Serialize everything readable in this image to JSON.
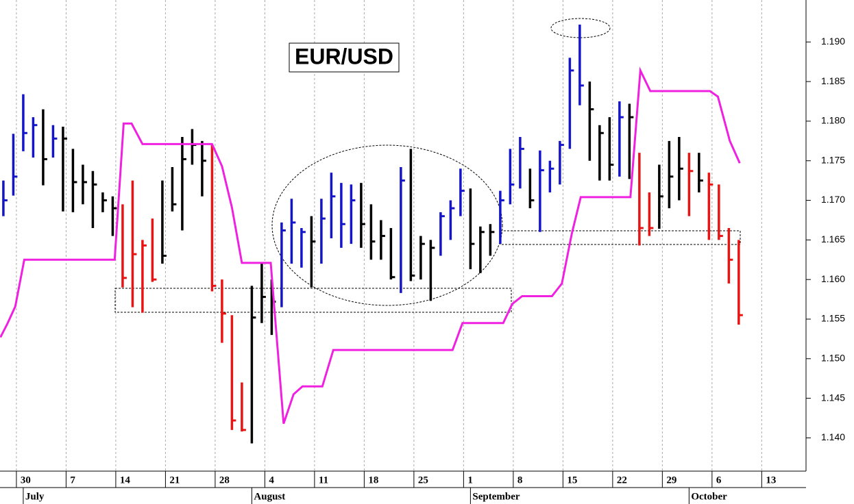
{
  "chart_data": {
    "type": "hlc",
    "title": "EUR/USD",
    "x": [
      -2,
      -1,
      0,
      1,
      2,
      3,
      4,
      5,
      6,
      7,
      8,
      9,
      10,
      11,
      12,
      13,
      14,
      15,
      16,
      17,
      18,
      19,
      20,
      21,
      22,
      23,
      24,
      25,
      26,
      27,
      28,
      29,
      30,
      31,
      32,
      33,
      34,
      35,
      36,
      37,
      38,
      39,
      40,
      41,
      42,
      43,
      44,
      45,
      46,
      47,
      48,
      49,
      50,
      51,
      52,
      53,
      54,
      55,
      56,
      57,
      58,
      59,
      60,
      61,
      62,
      63,
      64,
      65,
      66,
      67,
      68,
      69,
      70,
      71,
      72
    ],
    "high": [
      1.1725,
      1.1784,
      1.1834,
      1.1805,
      1.1815,
      1.1795,
      1.1793,
      1.1765,
      1.1745,
      1.1737,
      1.171,
      1.1705,
      1.1695,
      1.1725,
      1.165,
      1.1677,
      1.1725,
      1.1742,
      1.178,
      1.179,
      1.1775,
      1.177,
      1.16,
      1.1555,
      1.147,
      1.1592,
      1.162,
      1.16,
      1.1672,
      1.1702,
      1.1665,
      1.168,
      1.1702,
      1.1735,
      1.1722,
      1.172,
      1.1722,
      1.1695,
      1.1675,
      1.1665,
      1.1742,
      1.1765,
      1.1655,
      1.165,
      1.1685,
      1.17,
      1.174,
      1.1715,
      1.1667,
      1.167,
      1.1712,
      1.1765,
      1.178,
      1.174,
      1.1763,
      1.175,
      1.1775,
      1.188,
      1.1922,
      1.185,
      1.1795,
      1.1805,
      1.1825,
      1.1822,
      1.176,
      1.171,
      1.1745,
      1.1775,
      1.178,
      1.176,
      1.176,
      1.1735,
      1.172,
      1.1665,
      1.165
    ],
    "low": [
      1.168,
      1.1706,
      1.1762,
      1.1754,
      1.1719,
      1.1754,
      1.1686,
      1.1685,
      1.1695,
      1.1665,
      1.1685,
      1.1655,
      1.159,
      1.1565,
      1.1558,
      1.1597,
      1.162,
      1.1686,
      1.1662,
      1.1745,
      1.1705,
      1.1585,
      1.152,
      1.141,
      1.1408,
      1.1393,
      1.1545,
      1.153,
      1.1565,
      1.162,
      1.1615,
      1.159,
      1.162,
      1.1652,
      1.164,
      1.1645,
      1.164,
      1.1625,
      1.1625,
      1.16,
      1.1583,
      1.1598,
      1.16,
      1.1573,
      1.163,
      1.165,
      1.168,
      1.1613,
      1.1608,
      1.163,
      1.1645,
      1.1695,
      1.1715,
      1.169,
      1.166,
      1.171,
      1.172,
      1.1765,
      1.182,
      1.175,
      1.1725,
      1.1725,
      1.173,
      1.1727,
      1.1643,
      1.1655,
      1.1664,
      1.169,
      1.17,
      1.168,
      1.171,
      1.165,
      1.165,
      1.1595,
      1.1543
    ],
    "close": [
      1.17,
      1.173,
      1.1785,
      1.1795,
      1.1752,
      1.1778,
      1.1778,
      1.1723,
      1.1723,
      1.172,
      1.17,
      1.169,
      1.1602,
      1.1632,
      1.1643,
      1.16,
      1.163,
      1.1695,
      1.1752,
      1.177,
      1.175,
      1.1592,
      1.1557,
      1.1422,
      1.141,
      1.1552,
      1.1578,
      1.1572,
      1.1662,
      1.1672,
      1.166,
      1.1648,
      1.1677,
      1.1705,
      1.167,
      1.17,
      1.167,
      1.1648,
      1.1655,
      1.1603,
      1.1725,
      1.1605,
      1.1645,
      1.164,
      1.168,
      1.169,
      1.1712,
      1.1645,
      1.166,
      1.166,
      1.17,
      1.172,
      1.1765,
      1.17,
      1.1738,
      1.174,
      1.177,
      1.1864,
      1.1845,
      1.1815,
      1.1785,
      1.1745,
      1.1805,
      1.1805,
      1.1665,
      1.1665,
      1.1705,
      1.173,
      1.174,
      1.1737,
      1.1725,
      1.172,
      1.1655,
      1.1625,
      1.1555
    ],
    "bar_colors": [
      "#1414c8",
      "#1414c8",
      "#1414c8",
      "#1414c8",
      "#000000",
      "#1414c8",
      "#000000",
      "#000000",
      "#000000",
      "#000000",
      "#000000",
      "#000000",
      "#e81414",
      "#e81414",
      "#e81414",
      "#e81414",
      "#000000",
      "#000000",
      "#000000",
      "#000000",
      "#000000",
      "#e81414",
      "#e81414",
      "#e81414",
      "#e81414",
      "#000000",
      "#000000",
      "#000000",
      "#1414c8",
      "#1414c8",
      "#1414c8",
      "#000000",
      "#1414c8",
      "#1414c8",
      "#1414c8",
      "#1414c8",
      "#000000",
      "#000000",
      "#000000",
      "#000000",
      "#1414c8",
      "#000000",
      "#000000",
      "#000000",
      "#1414c8",
      "#1414c8",
      "#1414c8",
      "#000000",
      "#000000",
      "#000000",
      "#1414c8",
      "#1414c8",
      "#1414c8",
      "#000000",
      "#1414c8",
      "#1414c8",
      "#1414c8",
      "#1414c8",
      "#1414c8",
      "#000000",
      "#000000",
      "#000000",
      "#1414c8",
      "#000000",
      "#e81414",
      "#e81414",
      "#000000",
      "#000000",
      "#000000",
      "#e81414",
      "#000000",
      "#e81414",
      "#e81414",
      "#e81414",
      "#e81414"
    ],
    "line": {
      "color": "#f020e0",
      "x": [
        -2.3,
        -1.6,
        -0.8,
        0.1,
        9.2,
        10.1,
        10.9,
        12,
        19,
        20,
        21,
        22,
        24.9,
        26.2,
        27.2,
        28.1,
        30.1,
        31.2,
        43.2,
        44.2,
        48.3,
        49.2,
        50.2,
        53.2,
        54.2,
        55.2,
        56.1,
        61.1,
        62.1,
        63.1,
        69.1,
        69.9,
        71.1,
        72.1
      ],
      "values": [
        1.1527,
        1.1544,
        1.1566,
        1.1625,
        1.1625,
        1.1797,
        1.1797,
        1.1771,
        1.1771,
        1.1743,
        1.1691,
        1.1621,
        1.1621,
        1.1418,
        1.1455,
        1.1465,
        1.1465,
        1.1511,
        1.1511,
        1.1545,
        1.1545,
        1.1569,
        1.1579,
        1.1579,
        1.1595,
        1.1658,
        1.1704,
        1.1704,
        1.1864,
        1.1838,
        1.1838,
        1.1831,
        1.1775,
        1.1747
      ]
    },
    "xlim": [
      -2.34,
      78.7
    ],
    "ylim": [
      1.1358,
      1.1953
    ],
    "yticks": [
      {
        "value": 1.14,
        "label": "1.140"
      },
      {
        "value": 1.145,
        "label": "1.145"
      },
      {
        "value": 1.15,
        "label": "1.150"
      },
      {
        "value": 1.155,
        "label": "1.155"
      },
      {
        "value": 1.16,
        "label": "1.160"
      },
      {
        "value": 1.165,
        "label": "1.165"
      },
      {
        "value": 1.17,
        "label": "1.170"
      },
      {
        "value": 1.175,
        "label": "1.175"
      },
      {
        "value": 1.18,
        "label": "1.180"
      },
      {
        "value": 1.185,
        "label": "1.185"
      },
      {
        "value": 1.19,
        "label": "1.190"
      }
    ],
    "xticks": [
      {
        "value": 0,
        "label": "30"
      },
      {
        "value": 5,
        "label": "7"
      },
      {
        "value": 10,
        "label": "14"
      },
      {
        "value": 15,
        "label": "21"
      },
      {
        "value": 20,
        "label": "28"
      },
      {
        "value": 25,
        "label": "4"
      },
      {
        "value": 30,
        "label": "11"
      },
      {
        "value": 35,
        "label": "18"
      },
      {
        "value": 40,
        "label": "25"
      },
      {
        "value": 45,
        "label": "1"
      },
      {
        "value": 50,
        "label": "8"
      },
      {
        "value": 55,
        "label": "15"
      },
      {
        "value": 60,
        "label": "22"
      },
      {
        "value": 65,
        "label": "29"
      },
      {
        "value": 70,
        "label": "6"
      },
      {
        "value": 75,
        "label": "13"
      }
    ],
    "month_ticks": [
      {
        "value": 0,
        "label": "July"
      },
      {
        "value": 23,
        "label": "August"
      },
      {
        "value": 45,
        "label": "September"
      },
      {
        "value": 67,
        "label": "October"
      }
    ],
    "grid": true
  }
}
